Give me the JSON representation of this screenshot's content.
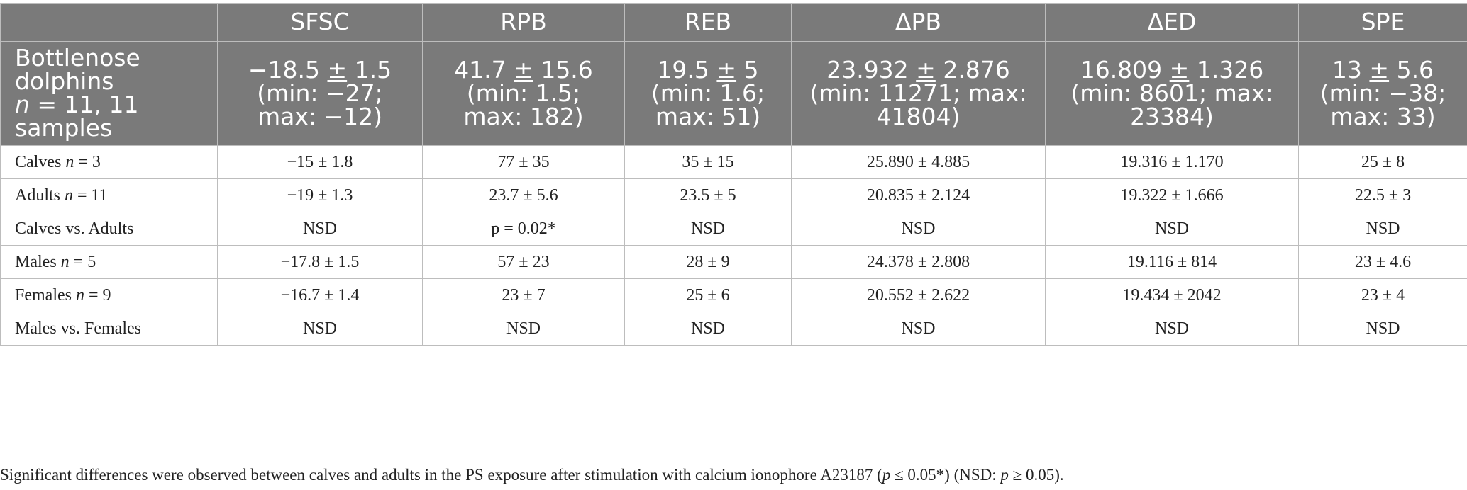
{
  "columns": [
    "",
    "SFSC",
    "RPB",
    "REB",
    "ΔPB",
    "ΔED",
    "SPE"
  ],
  "summary": {
    "label_line1": "Bottlenose",
    "label_line2": "dolphins",
    "label_n_var": "n",
    "label_n_rest": " = 11, 11",
    "label_line4": "samples",
    "cells": [
      {
        "mean": "−18.5",
        "pm": "±",
        "sd": " 1.5",
        "rest1": "(min: −27;",
        "rest2": "max: −12)"
      },
      {
        "mean": "41.7",
        "pm": "±",
        "sd": " 15.6",
        "rest1": "(min: 1.5;",
        "rest2": "max: 182)"
      },
      {
        "mean": "19.5",
        "pm": "±",
        "sd": " 5",
        "rest1": "(min: 1.6;",
        "rest2": "max: 51)"
      },
      {
        "mean": "23.932",
        "pm": "±",
        "sd": " 2.876",
        "rest1": "(min: 11271; max:",
        "rest2": "41804)"
      },
      {
        "mean": "16.809",
        "pm": "±",
        "sd": " 1.326",
        "rest1": "(min: 8601; max:",
        "rest2": "23384)"
      },
      {
        "mean": "13",
        "pm": "±",
        "sd": " 5.6",
        "rest1": "(min: −38;",
        "rest2": "max: 33)"
      }
    ]
  },
  "rows": [
    {
      "label": "Calves",
      "n": "n",
      "n_val": " = 3",
      "cells": [
        "−15 ± 1.8",
        "77 ± 35",
        "35 ± 15",
        "25.890 ± 4.885",
        "19.316 ± 1.170",
        "25 ± 8"
      ]
    },
    {
      "label": "Adults",
      "n": "n",
      "n_val": " = 11",
      "cells": [
        "−19 ± 1.3",
        "23.7 ± 5.6",
        "23.5 ± 5",
        "20.835 ± 2.124",
        "19.322 ± 1.666",
        "22.5 ± 3"
      ]
    },
    {
      "label": "Calves vs. Adults",
      "n": "",
      "n_val": "",
      "cells": [
        "NSD",
        "p = 0.02*",
        "NSD",
        "NSD",
        "NSD",
        "NSD"
      ]
    },
    {
      "label": "Males",
      "n": "n",
      "n_val": " = 5",
      "cells": [
        "−17.8 ± 1.5",
        "57 ± 23",
        "28 ± 9",
        "24.378 ± 2.808",
        "19.116 ± 814",
        "23 ± 4.6"
      ]
    },
    {
      "label": "Females",
      "n": "n",
      "n_val": " = 9",
      "cells": [
        "−16.7 ± 1.4",
        "23 ± 7",
        "25 ± 6",
        "20.552 ± 2.622",
        "19.434 ± 2042",
        "23 ± 4"
      ]
    },
    {
      "label": "Males vs. Females",
      "n": "",
      "n_val": "",
      "cells": [
        "NSD",
        "NSD",
        "NSD",
        "NSD",
        "NSD",
        "NSD"
      ]
    }
  ],
  "footnote": {
    "part1": "Significant differences were observed between calves and adults in the PS exposure after stimulation with calcium ionophore A23187 (",
    "p1": "p",
    "part2": " ≤ 0.05*) (NSD: ",
    "p2": "p",
    "part3": " ≥ 0.05)."
  }
}
